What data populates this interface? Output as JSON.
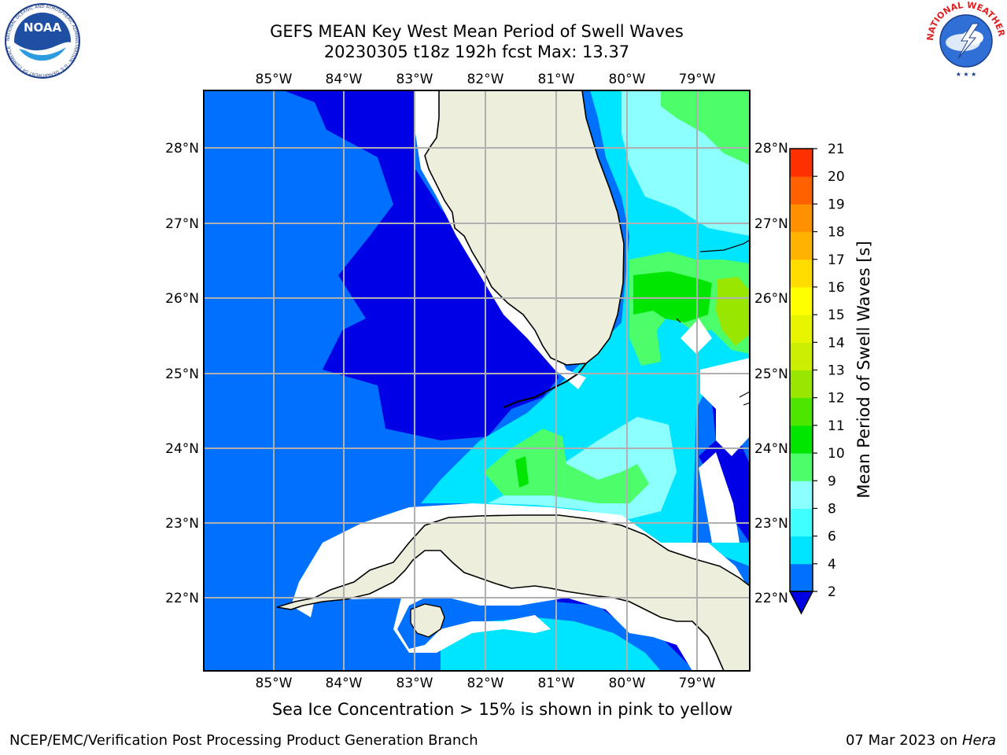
{
  "title_line1": "GEFS MEAN Key West Mean Period of Swell Waves",
  "title_line2": "20230305 t18z 192h fcst   Max: 13.37",
  "lon_labels": [
    "85°W",
    "84°W",
    "83°W",
    "82°W",
    "81°W",
    "80°W",
    "79°W"
  ],
  "lat_labels": [
    "28°N",
    "27°N",
    "26°N",
    "25°N",
    "24°N",
    "23°N",
    "22°N"
  ],
  "colorbar": {
    "title": "Mean Period of Swell Waves [s]",
    "ticks": [
      "2",
      "4",
      "6",
      "8",
      "9",
      "10",
      "11",
      "12",
      "13",
      "14",
      "15",
      "16",
      "17",
      "18",
      "19",
      "20",
      "21"
    ],
    "colors": [
      "#0070ff",
      "#00e5ff",
      "#40ffff",
      "#8cffff",
      "#4cff6a",
      "#00e600",
      "#4de600",
      "#99e600",
      "#ccee00",
      "#e8f500",
      "#ffff00",
      "#ffdd00",
      "#ffb300",
      "#ff9000",
      "#ff6000",
      "#ff3000",
      "#ff0000"
    ],
    "under_color": "#0000e6"
  },
  "note": "Sea Ice Concentration > 15% is shown in pink to yellow",
  "footer_left": "NCEP/EMC/Verification Post Processing Product Generation Branch",
  "footer_date": "07 Mar 2023 on",
  "footer_host": "Hera",
  "logos": {
    "noaa_text": "NOAA",
    "noaa_ring_text": "NATIONAL OCEANIC AND ATMOSPHERIC ADMINISTRATION · U.S. DEPARTMENT OF COMMERCE",
    "nws_ring_text": "NATIONAL WEATHER SERVICE"
  },
  "map_colors": {
    "deep": "#0000e6",
    "mid": "#0070ff",
    "cyan": "#00e5ff",
    "light_cyan": "#8cffff",
    "green": "#4cff6a",
    "bright_green": "#00e600",
    "yellow_green": "#99e600",
    "land": "#eeeedc"
  }
}
